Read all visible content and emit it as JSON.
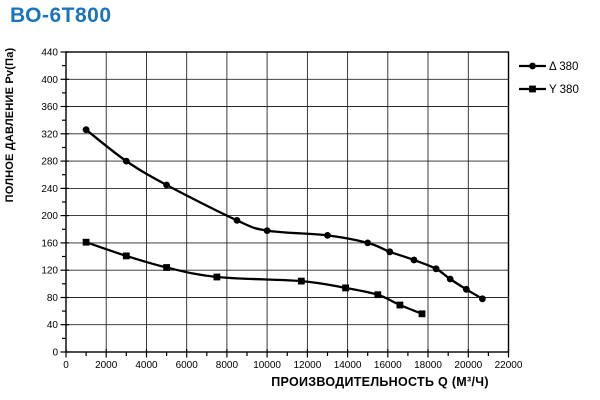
{
  "title": "ВО-6Т800",
  "colors": {
    "title": "#1b75bc",
    "ink": "#000000",
    "grid": "#262626",
    "background": "#ffffff"
  },
  "chart_data": {
    "type": "line",
    "title": "ВО-6Т800",
    "xlabel": "ПРОИЗВОДИТЕЛЬНОСТЬ Q (М³/Ч)",
    "ylabel": "ПОЛНОЕ ДАВЛЕНИЕ Pv(Па)",
    "xlim": [
      0,
      22000
    ],
    "ylim": [
      0,
      440
    ],
    "x_tick_step": 2000,
    "x_minor_tick_step": 1000,
    "y_tick_step": 40,
    "y_minor_tick_step": 20,
    "x_tick_labels": [
      "0",
      "2000",
      "4000",
      "6000",
      "8000",
      "10000",
      "12000",
      "14000",
      "16000",
      "18000",
      "20000",
      "22000"
    ],
    "y_tick_labels": [
      "0",
      "40",
      "80",
      "120",
      "160",
      "200",
      "240",
      "280",
      "320",
      "360",
      "400",
      "440"
    ],
    "grid": true,
    "legend_position": "outside-top-right",
    "series": [
      {
        "name": "Δ 380",
        "marker": "circle",
        "color": "#000000",
        "points": [
          [
            1000,
            326
          ],
          [
            3000,
            280
          ],
          [
            5000,
            245
          ],
          [
            8500,
            193
          ],
          [
            10000,
            178
          ],
          [
            13000,
            171
          ],
          [
            15000,
            160
          ],
          [
            16100,
            147
          ],
          [
            17300,
            135
          ],
          [
            18400,
            122
          ],
          [
            19100,
            107
          ],
          [
            19900,
            92
          ],
          [
            20700,
            78
          ]
        ]
      },
      {
        "name": "Y 380",
        "marker": "square",
        "color": "#000000",
        "points": [
          [
            1000,
            161
          ],
          [
            3000,
            141
          ],
          [
            5000,
            124
          ],
          [
            7500,
            110
          ],
          [
            11700,
            104
          ],
          [
            13900,
            94
          ],
          [
            15500,
            84
          ],
          [
            16600,
            69
          ],
          [
            17700,
            56
          ]
        ]
      }
    ]
  }
}
